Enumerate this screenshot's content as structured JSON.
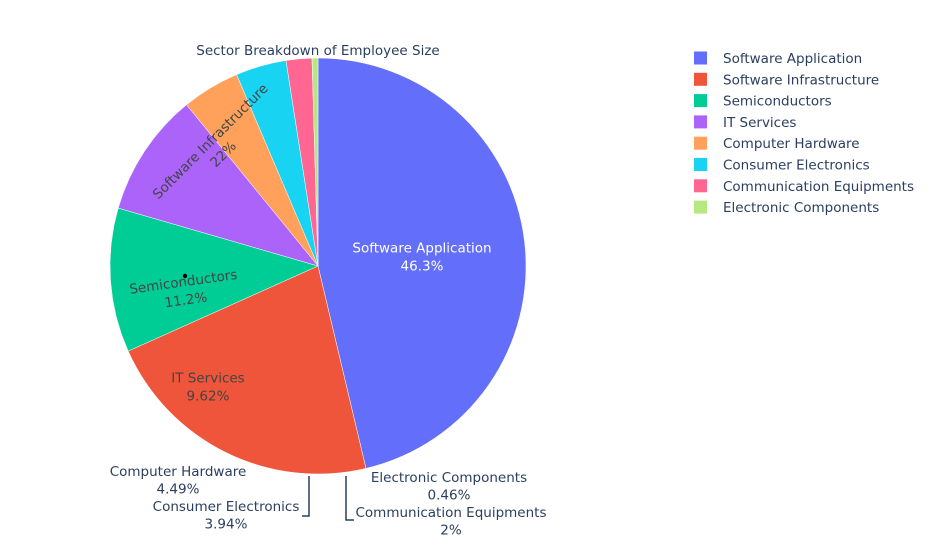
{
  "chart_data": {
    "type": "pie",
    "title": "Sector Breakdown of Employee Size",
    "legend_position": "top-right",
    "slices": [
      {
        "label": "Software Application",
        "value": 46.3,
        "text": "46.3%",
        "color": "#636efa"
      },
      {
        "label": "Software Infrastructure",
        "value": 22,
        "text": "22%",
        "color": "#ef553b"
      },
      {
        "label": "Semiconductors",
        "value": 11.2,
        "text": "11.2%",
        "color": "#00cc96"
      },
      {
        "label": "IT Services",
        "value": 9.62,
        "text": "9.62%",
        "color": "#ab63fa"
      },
      {
        "label": "Computer Hardware",
        "value": 4.49,
        "text": "4.49%",
        "color": "#ffa15a"
      },
      {
        "label": "Consumer Electronics",
        "value": 3.94,
        "text": "3.94%",
        "color": "#19d3f3"
      },
      {
        "label": "Communication Equipments",
        "value": 2,
        "text": "2%",
        "color": "#ff6692"
      },
      {
        "label": "Electronic Components",
        "value": 0.46,
        "text": "0.46%",
        "color": "#b6e880"
      }
    ]
  }
}
